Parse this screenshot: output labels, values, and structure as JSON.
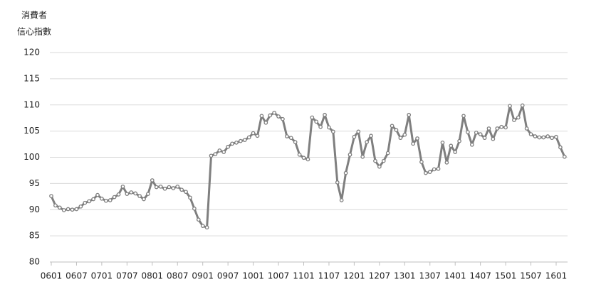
{
  "chart_data": {
    "type": "line",
    "ylabel": [
      "消費者",
      "信心指數"
    ],
    "categories": [
      "0601",
      null,
      null,
      null,
      null,
      null,
      "0607",
      null,
      null,
      null,
      null,
      null,
      "0701",
      null,
      null,
      null,
      null,
      null,
      "0707",
      null,
      null,
      null,
      null,
      null,
      "0801",
      null,
      null,
      null,
      null,
      null,
      "0807",
      null,
      null,
      null,
      null,
      null,
      "0901",
      null,
      null,
      null,
      null,
      null,
      "0907",
      null,
      null,
      null,
      null,
      null,
      "1001",
      null,
      null,
      null,
      null,
      null,
      "1007",
      null,
      null,
      null,
      null,
      null,
      "1101",
      null,
      null,
      null,
      null,
      null,
      "1107",
      null,
      null,
      null,
      null,
      null,
      "1201",
      null,
      null,
      null,
      null,
      null,
      "1207",
      null,
      null,
      null,
      null,
      null,
      "1301",
      null,
      null,
      null,
      null,
      null,
      "1307",
      null,
      null,
      null,
      null,
      null,
      "1401",
      null,
      null,
      null,
      null,
      null,
      "1407",
      null,
      null,
      null,
      null,
      null,
      "1501",
      null,
      null,
      null,
      null,
      null,
      "1507",
      null,
      null,
      null,
      null,
      null,
      "1601",
      null,
      null
    ],
    "values": [
      92.6,
      90.8,
      90.4,
      89.9,
      90.1,
      90.0,
      90.1,
      90.6,
      91.3,
      91.6,
      92.0,
      92.8,
      92.1,
      91.7,
      91.8,
      92.4,
      92.9,
      94.4,
      93.0,
      93.3,
      93.1,
      92.6,
      92.0,
      93.0,
      95.6,
      94.3,
      94.4,
      94.0,
      94.3,
      94.1,
      94.4,
      93.8,
      93.4,
      92.3,
      90.2,
      88.1,
      86.9,
      86.6,
      100.3,
      100.6,
      101.3,
      101.0,
      102.0,
      102.6,
      102.8,
      103.1,
      103.3,
      103.8,
      104.6,
      104.1,
      107.9,
      106.6,
      108.0,
      108.5,
      107.8,
      107.3,
      104.0,
      103.7,
      102.9,
      100.5,
      99.9,
      99.6,
      107.6,
      106.8,
      105.8,
      108.1,
      105.7,
      104.9,
      95.2,
      91.8,
      97.0,
      100.5,
      103.9,
      104.9,
      100.1,
      102.9,
      104.1,
      99.3,
      98.2,
      99.3,
      100.8,
      106.0,
      105.2,
      103.7,
      104.3,
      108.1,
      102.6,
      103.6,
      99.1,
      97.0,
      97.2,
      97.7,
      97.8,
      102.8,
      99.0,
      102.2,
      101.0,
      103.1,
      107.9,
      104.8,
      102.4,
      104.7,
      104.4,
      103.7,
      105.5,
      103.5,
      105.5,
      105.8,
      105.7,
      109.8,
      107.1,
      107.6,
      109.9,
      105.5,
      104.4,
      104.0,
      103.8,
      103.8,
      104.0,
      103.7,
      103.9,
      101.9,
      100.1
    ],
    "color": "#7f7f7f",
    "ylim": [
      80,
      120
    ],
    "yticks": [
      80,
      85,
      90,
      95,
      100,
      105,
      110,
      115,
      120
    ],
    "grid": true
  }
}
